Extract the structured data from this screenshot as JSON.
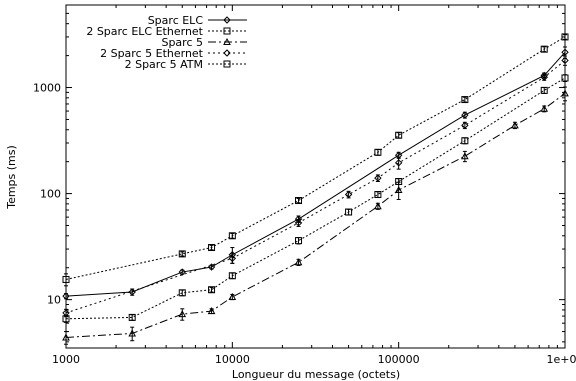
{
  "chart_data": {
    "type": "line",
    "title": "",
    "xlabel": "Longueur du message (octets)",
    "ylabel": "Temps (ms)",
    "x_scale": "log",
    "y_scale": "log",
    "xlim": [
      1000,
      1000000
    ],
    "ylim": [
      3.5,
      6000
    ],
    "x_ticks": [
      1000,
      10000,
      100000,
      1000000
    ],
    "x_tick_labels": [
      "1000",
      "10000",
      "100000",
      "1e+06"
    ],
    "y_ticks": [
      10,
      100,
      1000
    ],
    "y_tick_labels": [
      "10",
      "100",
      "1000"
    ],
    "grid": false,
    "legend_position": "top-right",
    "series": [
      {
        "name": "Sparc ELC",
        "marker": "diamond",
        "dash": "",
        "x": [
          1000,
          2500,
          5000,
          7500,
          10000,
          25000,
          100000,
          250000,
          750000,
          1000000
        ],
        "y": [
          10.8,
          11.8,
          18.2,
          20.3,
          26.5,
          57.5,
          230,
          550,
          1300,
          2150
        ],
        "err": [
          0.6,
          0.8,
          0.8,
          0.8,
          4.5,
          4,
          15,
          35,
          70,
          260
        ]
      },
      {
        "name": "2 Sparc ELC Ethernet",
        "marker": "square",
        "dash": "2,2",
        "x": [
          1000,
          2500,
          5000,
          7500,
          10000,
          25000,
          50000,
          75000,
          100000,
          250000,
          750000,
          1000000
        ],
        "y": [
          6.6,
          6.8,
          11.6,
          12.4,
          16.8,
          36,
          67,
          98,
          130,
          315,
          940,
          1230
        ],
        "err": [
          0.5,
          0.4,
          0.7,
          0.6,
          1.0,
          2.5,
          4,
          6,
          8,
          20,
          60,
          90
        ]
      },
      {
        "name": "Sparc 5",
        "marker": "triangle",
        "dash": "8,3,2,3",
        "x": [
          1000,
          2500,
          5000,
          7500,
          10000,
          25000,
          75000,
          100000,
          250000,
          500000,
          750000,
          1000000
        ],
        "y": [
          4.4,
          4.8,
          7.3,
          7.8,
          10.6,
          22.5,
          76,
          108,
          225,
          440,
          630,
          880
        ],
        "err": [
          0.6,
          0.7,
          0.9,
          0.4,
          0.6,
          1.5,
          5,
          20,
          25,
          30,
          40,
          130
        ]
      },
      {
        "name": "2 Sparc 5 Ethernet",
        "marker": "diamond",
        "dash": "2,3",
        "x": [
          1000,
          10000,
          25000,
          50000,
          75000,
          100000,
          250000,
          750000,
          1000000
        ],
        "y": [
          7.5,
          24.5,
          53,
          98,
          140,
          195,
          440,
          1250,
          1800
        ],
        "err": [
          0.6,
          2.5,
          4,
          7,
          10,
          25,
          30,
          80,
          180
        ]
      },
      {
        "name": "2 Sparc 5 ATM",
        "marker": "square",
        "dash": "2,2",
        "x": [
          1000,
          5000,
          7500,
          10000,
          25000,
          75000,
          100000,
          250000,
          750000,
          1000000
        ],
        "y": [
          15.5,
          27,
          31,
          40,
          86,
          245,
          355,
          770,
          2300,
          3000
        ],
        "err": [
          2,
          1.2,
          1.5,
          2,
          4,
          15,
          20,
          40,
          120,
          150
        ]
      }
    ]
  }
}
